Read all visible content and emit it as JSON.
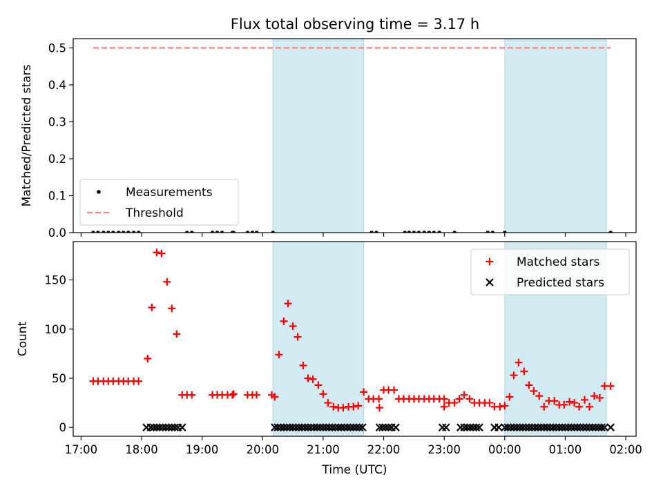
{
  "colors": {
    "shade": "#add8e6",
    "matched": "#ff0000",
    "predicted": "#000000",
    "threshold": "#ff7f7f",
    "measurement": "#000000"
  },
  "chart_data": [
    {
      "type": "scatter",
      "title": "Flux total observing time = 3.17 h",
      "xlabel": "",
      "ylabel": "Matched/Predicted stars",
      "xlim": [
        16.87,
        26.17
      ],
      "ylim": [
        0,
        0.525
      ],
      "xticks": [
        17,
        18,
        19,
        20,
        21,
        22,
        23,
        24,
        25,
        26
      ],
      "yticks": [
        0.0,
        0.1,
        0.2,
        0.3,
        0.4,
        0.5
      ],
      "ytick_labels": [
        "0.0",
        "0.1",
        "0.2",
        "0.3",
        "0.4",
        "0.5"
      ],
      "shaded_spans": [
        [
          20.17,
          21.67
        ],
        [
          24.0,
          25.68
        ]
      ],
      "legend_position": "lower-left",
      "legend": [
        {
          "label": "Measurements",
          "marker": "dot"
        },
        {
          "label": "Threshold",
          "marker": "dashed-line"
        }
      ],
      "threshold": {
        "y": 0.5,
        "x_range": [
          17.2,
          25.75
        ]
      },
      "series": [
        {
          "name": "Measurements",
          "marker": "dot",
          "points": [
            [
              17.2,
              0
            ],
            [
              17.28,
              0
            ],
            [
              17.37,
              0
            ],
            [
              17.45,
              0
            ],
            [
              17.53,
              0
            ],
            [
              17.62,
              0
            ],
            [
              17.7,
              0
            ],
            [
              17.78,
              0
            ],
            [
              17.87,
              0
            ],
            [
              17.95,
              0
            ],
            [
              18.75,
              0
            ],
            [
              18.83,
              0
            ],
            [
              19.17,
              0
            ],
            [
              19.25,
              0
            ],
            [
              19.33,
              0
            ],
            [
              19.5,
              0
            ],
            [
              19.52,
              0
            ],
            [
              19.75,
              0
            ],
            [
              19.83,
              0
            ],
            [
              19.9,
              0
            ],
            [
              20.17,
              0
            ],
            [
              21.8,
              0
            ],
            [
              21.88,
              0
            ],
            [
              22.35,
              0
            ],
            [
              22.42,
              0
            ],
            [
              22.5,
              0
            ],
            [
              22.58,
              0
            ],
            [
              22.67,
              0
            ],
            [
              22.75,
              0
            ],
            [
              22.83,
              0
            ],
            [
              22.92,
              0
            ],
            [
              23.17,
              0
            ],
            [
              23.72,
              0
            ],
            [
              23.8,
              0
            ],
            [
              24.0,
              0
            ],
            [
              25.75,
              0
            ]
          ]
        }
      ]
    },
    {
      "type": "scatter",
      "xlabel": "Time (UTC)",
      "ylabel": "Count",
      "xlim": [
        16.87,
        26.17
      ],
      "ylim": [
        -9,
        189
      ],
      "xticks": [
        17,
        18,
        19,
        20,
        21,
        22,
        23,
        24,
        25,
        26
      ],
      "xtick_labels": [
        "17:00",
        "18:00",
        "19:00",
        "20:00",
        "21:00",
        "22:00",
        "23:00",
        "00:00",
        "01:00",
        "02:00"
      ],
      "yticks": [
        0,
        50,
        100,
        150
      ],
      "ytick_labels": [
        "0",
        "50",
        "100",
        "150"
      ],
      "shaded_spans": [
        [
          20.17,
          21.67
        ],
        [
          24.0,
          25.68
        ]
      ],
      "legend_position": "top-right",
      "legend": [
        {
          "label": "Matched stars",
          "marker": "plus"
        },
        {
          "label": "Predicted stars",
          "marker": "x"
        }
      ],
      "series": [
        {
          "name": "Matched stars",
          "marker": "plus",
          "points": [
            [
              17.2,
              47
            ],
            [
              17.28,
              47
            ],
            [
              17.37,
              47
            ],
            [
              17.45,
              47
            ],
            [
              17.53,
              47
            ],
            [
              17.62,
              47
            ],
            [
              17.7,
              47
            ],
            [
              17.78,
              47
            ],
            [
              17.87,
              47
            ],
            [
              17.95,
              47
            ],
            [
              18.1,
              70
            ],
            [
              18.17,
              122
            ],
            [
              18.25,
              178
            ],
            [
              18.33,
              177
            ],
            [
              18.42,
              148
            ],
            [
              18.5,
              121
            ],
            [
              18.58,
              95
            ],
            [
              18.67,
              33
            ],
            [
              18.75,
              33
            ],
            [
              18.83,
              33
            ],
            [
              19.17,
              33
            ],
            [
              19.25,
              33
            ],
            [
              19.33,
              33
            ],
            [
              19.42,
              33
            ],
            [
              19.5,
              33
            ],
            [
              19.52,
              34
            ],
            [
              19.75,
              33
            ],
            [
              19.83,
              33
            ],
            [
              19.9,
              33
            ],
            [
              20.15,
              33
            ],
            [
              20.2,
              31
            ],
            [
              20.27,
              74
            ],
            [
              20.35,
              108
            ],
            [
              20.42,
              126
            ],
            [
              20.5,
              103
            ],
            [
              20.58,
              92
            ],
            [
              20.67,
              63
            ],
            [
              20.75,
              50
            ],
            [
              20.83,
              49
            ],
            [
              20.92,
              43
            ],
            [
              21.0,
              34
            ],
            [
              21.08,
              25
            ],
            [
              21.17,
              21
            ],
            [
              21.25,
              20
            ],
            [
              21.33,
              20
            ],
            [
              21.42,
              21
            ],
            [
              21.5,
              21
            ],
            [
              21.58,
              22
            ],
            [
              21.67,
              36
            ],
            [
              21.75,
              29
            ],
            [
              21.83,
              29
            ],
            [
              21.92,
              29
            ],
            [
              21.93,
              20
            ],
            [
              22.0,
              38
            ],
            [
              22.08,
              38
            ],
            [
              22.17,
              38
            ],
            [
              22.25,
              29
            ],
            [
              22.33,
              29
            ],
            [
              22.42,
              29
            ],
            [
              22.5,
              29
            ],
            [
              22.58,
              29
            ],
            [
              22.67,
              29
            ],
            [
              22.75,
              29
            ],
            [
              22.83,
              29
            ],
            [
              22.92,
              29
            ],
            [
              23.0,
              29
            ],
            [
              23.0,
              21
            ],
            [
              23.08,
              25
            ],
            [
              23.17,
              25
            ],
            [
              23.25,
              29
            ],
            [
              23.33,
              33
            ],
            [
              23.42,
              29
            ],
            [
              23.5,
              25
            ],
            [
              23.58,
              25
            ],
            [
              23.67,
              25
            ],
            [
              23.75,
              25
            ],
            [
              23.83,
              21
            ],
            [
              23.92,
              21
            ],
            [
              24.0,
              22
            ],
            [
              24.08,
              31
            ],
            [
              24.15,
              53
            ],
            [
              24.23,
              66
            ],
            [
              24.32,
              57
            ],
            [
              24.4,
              43
            ],
            [
              24.48,
              37
            ],
            [
              24.57,
              32
            ],
            [
              24.65,
              21
            ],
            [
              24.73,
              27
            ],
            [
              24.82,
              27
            ],
            [
              24.9,
              23
            ],
            [
              24.98,
              23
            ],
            [
              25.07,
              26
            ],
            [
              25.15,
              25
            ],
            [
              25.23,
              21
            ],
            [
              25.32,
              28
            ],
            [
              25.4,
              21
            ],
            [
              25.48,
              32
            ],
            [
              25.57,
              30
            ],
            [
              25.65,
              42
            ],
            [
              25.75,
              42
            ]
          ]
        },
        {
          "name": "Predicted stars",
          "marker": "x",
          "points": [
            [
              18.08,
              0
            ],
            [
              18.15,
              0
            ],
            [
              18.2,
              0
            ],
            [
              18.25,
              0
            ],
            [
              18.3,
              0
            ],
            [
              18.35,
              0
            ],
            [
              18.4,
              0
            ],
            [
              18.45,
              0
            ],
            [
              18.5,
              0
            ],
            [
              18.55,
              0
            ],
            [
              18.6,
              0
            ],
            [
              18.67,
              0
            ],
            [
              20.2,
              0
            ],
            [
              20.25,
              0
            ],
            [
              20.3,
              0
            ],
            [
              20.35,
              0
            ],
            [
              20.4,
              0
            ],
            [
              20.45,
              0
            ],
            [
              20.5,
              0
            ],
            [
              20.55,
              0
            ],
            [
              20.6,
              0
            ],
            [
              20.65,
              0
            ],
            [
              20.7,
              0
            ],
            [
              20.75,
              0
            ],
            [
              20.8,
              0
            ],
            [
              20.85,
              0
            ],
            [
              20.9,
              0
            ],
            [
              20.95,
              0
            ],
            [
              21.0,
              0
            ],
            [
              21.05,
              0
            ],
            [
              21.1,
              0
            ],
            [
              21.15,
              0
            ],
            [
              21.2,
              0
            ],
            [
              21.25,
              0
            ],
            [
              21.3,
              0
            ],
            [
              21.35,
              0
            ],
            [
              21.4,
              0
            ],
            [
              21.45,
              0
            ],
            [
              21.5,
              0
            ],
            [
              21.55,
              0
            ],
            [
              21.6,
              0
            ],
            [
              21.65,
              0
            ],
            [
              21.93,
              0
            ],
            [
              21.98,
              0
            ],
            [
              22.03,
              0
            ],
            [
              22.08,
              0
            ],
            [
              22.13,
              0
            ],
            [
              22.2,
              0
            ],
            [
              22.97,
              0
            ],
            [
              23.03,
              0
            ],
            [
              23.27,
              0
            ],
            [
              23.33,
              0
            ],
            [
              23.38,
              0
            ],
            [
              23.43,
              0
            ],
            [
              23.48,
              0
            ],
            [
              23.53,
              0
            ],
            [
              23.58,
              0
            ],
            [
              23.83,
              0
            ],
            [
              23.9,
              0
            ],
            [
              24.0,
              0
            ],
            [
              24.05,
              0
            ],
            [
              24.1,
              0
            ],
            [
              24.15,
              0
            ],
            [
              24.2,
              0
            ],
            [
              24.25,
              0
            ],
            [
              24.3,
              0
            ],
            [
              24.35,
              0
            ],
            [
              24.4,
              0
            ],
            [
              24.45,
              0
            ],
            [
              24.5,
              0
            ],
            [
              24.55,
              0
            ],
            [
              24.6,
              0
            ],
            [
              24.65,
              0
            ],
            [
              24.7,
              0
            ],
            [
              24.75,
              0
            ],
            [
              24.8,
              0
            ],
            [
              24.85,
              0
            ],
            [
              24.9,
              0
            ],
            [
              24.95,
              0
            ],
            [
              25.0,
              0
            ],
            [
              25.05,
              0
            ],
            [
              25.1,
              0
            ],
            [
              25.15,
              0
            ],
            [
              25.2,
              0
            ],
            [
              25.25,
              0
            ],
            [
              25.3,
              0
            ],
            [
              25.35,
              0
            ],
            [
              25.4,
              0
            ],
            [
              25.45,
              0
            ],
            [
              25.5,
              0
            ],
            [
              25.55,
              0
            ],
            [
              25.6,
              0
            ],
            [
              25.65,
              0
            ],
            [
              25.75,
              0
            ]
          ]
        }
      ]
    }
  ]
}
